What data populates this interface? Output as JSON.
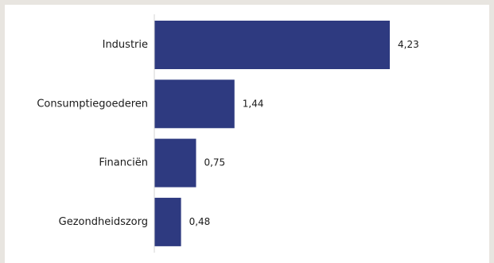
{
  "chart_data": {
    "type": "bar",
    "orientation": "horizontal",
    "categories": [
      "Industrie",
      "Consumptiegoederen",
      "Financiën",
      "Gezondheidszorg"
    ],
    "values": [
      4.23,
      1.44,
      0.75,
      0.48
    ],
    "value_labels": [
      "4,23",
      "1,44",
      "0,75",
      "0,48"
    ],
    "title": "",
    "xlabel": "",
    "ylabel": "",
    "xlim": [
      0,
      4.23
    ],
    "grid": false,
    "legend": "none",
    "bar_color": "#2e3a80"
  }
}
